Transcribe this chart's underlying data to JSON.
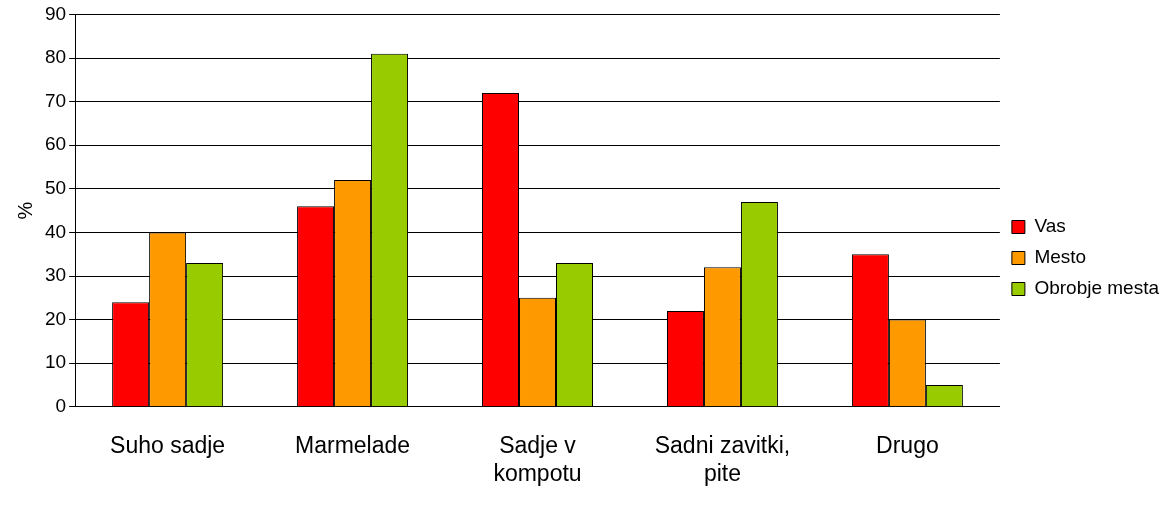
{
  "chart_data": {
    "type": "bar",
    "ylabel": "%",
    "categories": [
      "Suho sadje",
      "Marmelade",
      "Sadje v kompotu",
      "Sadni zavitki, pite",
      "Drugo"
    ],
    "series": [
      {
        "name": "Vas",
        "color": "#ff0000",
        "values": [
          24,
          46,
          72,
          22,
          35
        ]
      },
      {
        "name": "Mesto",
        "color": "#ff9900",
        "values": [
          40,
          52,
          25,
          32,
          20
        ]
      },
      {
        "name": "Obrobje mesta",
        "color": "#99cc00",
        "values": [
          33,
          81,
          33,
          47,
          5
        ]
      }
    ],
    "ylim": [
      0,
      90
    ],
    "yticks": [
      0,
      10,
      20,
      30,
      40,
      50,
      60,
      70,
      80,
      90
    ],
    "grid": "y",
    "legend": "right"
  }
}
